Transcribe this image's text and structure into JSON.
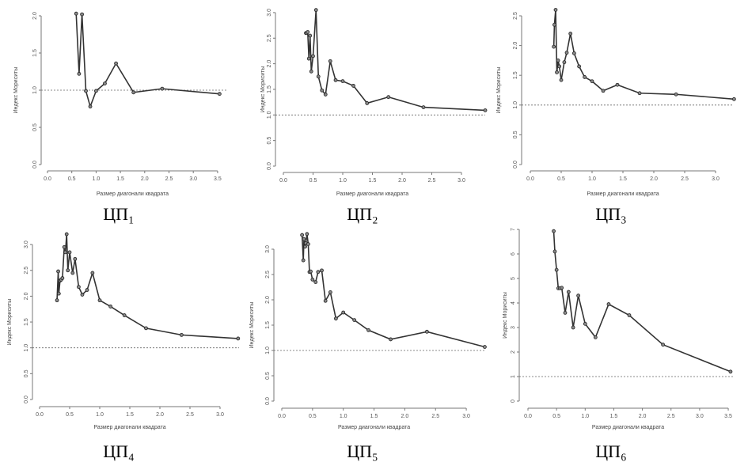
{
  "chart_data": [
    {
      "type": "line",
      "caption": "ЦП₁",
      "xlabel": "Размер диагонали квадрата",
      "ylabel": "Индекс Мориситы",
      "xlim": [
        0,
        3.6
      ],
      "ylim": [
        0,
        2.0
      ],
      "xticks": [
        0,
        0.5,
        1.0,
        1.5,
        2.0,
        2.5,
        3.0,
        3.5
      ],
      "yticks": [
        0,
        0.5,
        1.0,
        1.5,
        2.0
      ],
      "reference_line": 1.0,
      "x": [
        0.59,
        0.65,
        0.71,
        0.79,
        0.88,
        1.0,
        1.18,
        1.41,
        1.77,
        2.36,
        3.54
      ],
      "y": [
        2.03,
        1.22,
        2.02,
        0.99,
        0.78,
        0.99,
        1.09,
        1.36,
        0.97,
        1.02,
        0.95
      ]
    },
    {
      "type": "line",
      "caption": "ЦП₂",
      "xlabel": "Размер диагонали квадрата",
      "ylabel": "Индекс Мориситы",
      "xlim": [
        0,
        3.4
      ],
      "ylim": [
        0,
        3.0
      ],
      "xticks": [
        0,
        0.5,
        1.0,
        1.5,
        2.0,
        2.5,
        3.0
      ],
      "yticks": [
        0,
        0.5,
        1.0,
        1.5,
        2.0,
        2.5,
        3.0
      ],
      "reference_line": 1.0,
      "x": [
        0.38,
        0.39,
        0.41,
        0.43,
        0.45,
        0.47,
        0.5,
        0.55,
        0.59,
        0.65,
        0.71,
        0.79,
        0.88,
        1.0,
        1.18,
        1.41,
        1.77,
        2.36,
        3.4
      ],
      "y": [
        2.6,
        2.6,
        2.62,
        2.1,
        2.55,
        1.85,
        2.15,
        3.05,
        1.75,
        1.48,
        1.4,
        2.05,
        1.68,
        1.66,
        1.57,
        1.23,
        1.35,
        1.15,
        1.09
      ]
    },
    {
      "type": "line",
      "caption": "ЦП₃",
      "xlabel": "Размер диагонали квадрата",
      "ylabel": "Индекс Мориситы",
      "xlim": [
        0,
        3.3
      ],
      "ylim": [
        0,
        2.5
      ],
      "xticks": [
        0,
        0.5,
        1.0,
        1.5,
        2.0,
        2.5,
        3.0
      ],
      "yticks": [
        0,
        0.5,
        1.0,
        1.5,
        2.0,
        2.5
      ],
      "reference_line": 1.0,
      "x": [
        0.38,
        0.39,
        0.41,
        0.43,
        0.45,
        0.47,
        0.5,
        0.55,
        0.59,
        0.65,
        0.71,
        0.79,
        0.88,
        1.0,
        1.18,
        1.41,
        1.77,
        2.36,
        3.3
      ],
      "y": [
        1.98,
        2.35,
        2.6,
        1.55,
        1.75,
        1.65,
        1.42,
        1.72,
        1.88,
        2.2,
        1.87,
        1.65,
        1.47,
        1.4,
        1.24,
        1.34,
        1.2,
        1.18,
        1.1
      ]
    },
    {
      "type": "line",
      "caption": "ЦП₄",
      "xlabel": "Размер диагонали квадрата",
      "ylabel": "Индекс Мориситы",
      "xlim": [
        0,
        3.3
      ],
      "ylim": [
        0,
        3.0
      ],
      "xticks": [
        0,
        0.5,
        1.0,
        1.5,
        2.0,
        2.5,
        3.0
      ],
      "yticks": [
        0,
        0.5,
        1.0,
        1.5,
        2.0,
        2.5,
        3.0
      ],
      "reference_line": 1.0,
      "x": [
        0.29,
        0.31,
        0.32,
        0.34,
        0.36,
        0.38,
        0.41,
        0.43,
        0.45,
        0.47,
        0.5,
        0.55,
        0.59,
        0.65,
        0.71,
        0.79,
        0.88,
        1.0,
        1.18,
        1.41,
        1.77,
        2.36,
        3.3
      ],
      "y": [
        1.92,
        2.48,
        2.05,
        2.3,
        2.32,
        2.35,
        2.95,
        2.85,
        3.2,
        2.5,
        2.85,
        2.45,
        2.72,
        2.18,
        2.03,
        2.12,
        2.45,
        1.92,
        1.8,
        1.63,
        1.38,
        1.25,
        1.18
      ]
    },
    {
      "type": "line",
      "caption": "ЦП₅",
      "xlabel": "Размер диагонали квадрата",
      "ylabel": "Индекс Мориситы",
      "xlim": [
        0,
        3.3
      ],
      "ylim": [
        0,
        3.0
      ],
      "xticks": [
        0,
        0.5,
        1.0,
        1.5,
        2.0,
        2.5,
        3.0
      ],
      "yticks": [
        0,
        0.5,
        1.0,
        1.5,
        2.0,
        2.5,
        3.0
      ],
      "reference_line": 1.0,
      "x": [
        0.33,
        0.35,
        0.36,
        0.38,
        0.39,
        0.41,
        0.43,
        0.45,
        0.47,
        0.5,
        0.55,
        0.59,
        0.65,
        0.71,
        0.79,
        0.88,
        1.0,
        1.18,
        1.41,
        1.77,
        2.36,
        3.3
      ],
      "y": [
        3.28,
        2.78,
        3.2,
        3.05,
        3.12,
        3.3,
        3.1,
        2.55,
        2.56,
        2.4,
        2.35,
        2.55,
        2.58,
        1.98,
        2.15,
        1.63,
        1.75,
        1.6,
        1.4,
        1.22,
        1.37,
        1.07
      ]
    },
    {
      "type": "line",
      "caption": "ЦП₆",
      "xlabel": "Размер диагонали квадрата",
      "ylabel": "Индекс Мориситы",
      "xlim": [
        0,
        3.6
      ],
      "ylim": [
        0,
        7
      ],
      "xticks": [
        0,
        0.5,
        1.0,
        1.5,
        2.0,
        2.5,
        3.0,
        3.5
      ],
      "yticks": [
        0,
        1,
        2,
        3,
        4,
        5,
        6,
        7
      ],
      "reference_line": 1.0,
      "x": [
        0.45,
        0.47,
        0.5,
        0.53,
        0.56,
        0.59,
        0.65,
        0.71,
        0.79,
        0.88,
        1.0,
        1.18,
        1.41,
        1.77,
        2.36,
        3.54
      ],
      "y": [
        6.93,
        6.1,
        5.35,
        4.6,
        4.6,
        4.62,
        3.6,
        4.45,
        3.0,
        4.3,
        3.15,
        2.6,
        3.95,
        3.5,
        2.3,
        1.2
      ]
    }
  ]
}
